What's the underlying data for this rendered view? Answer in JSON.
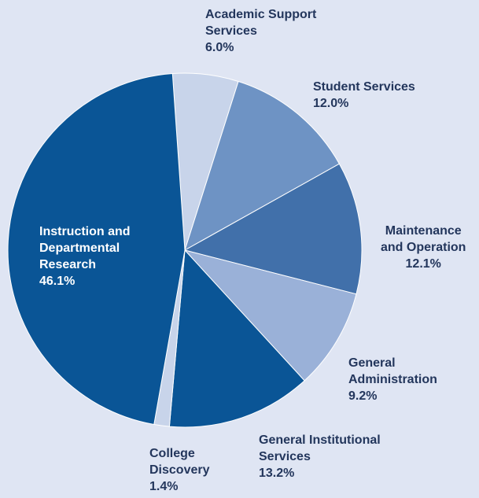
{
  "chart_data": {
    "type": "pie",
    "start_angle_deg": -94,
    "direction": "clockwise",
    "slices": [
      {
        "name_lines": [
          "Academic Support",
          "Services"
        ],
        "value": 6.0,
        "label": "6.0%",
        "color": "#c8d4ea"
      },
      {
        "name_lines": [
          "Student Services"
        ],
        "value": 12.0,
        "label": "12.0%",
        "color": "#6e93c4"
      },
      {
        "name_lines": [
          "Maintenance",
          "and Operation"
        ],
        "value": 12.1,
        "label": "12.1%",
        "color": "#4170aa"
      },
      {
        "name_lines": [
          "General",
          "Administration"
        ],
        "value": 9.2,
        "label": "9.2%",
        "color": "#9ab1d8"
      },
      {
        "name_lines": [
          "General Institutional",
          "Services"
        ],
        "value": 13.2,
        "label": "13.2%",
        "color": "#0a5596"
      },
      {
        "name_lines": [
          "College",
          "Discovery"
        ],
        "value": 1.4,
        "label": "1.4%",
        "color": "#c8d4ea"
      },
      {
        "name_lines": [
          "Instruction and",
          "Departmental",
          "Research"
        ],
        "value": 46.1,
        "label": "46.1%",
        "color": "#0a5596"
      }
    ]
  }
}
